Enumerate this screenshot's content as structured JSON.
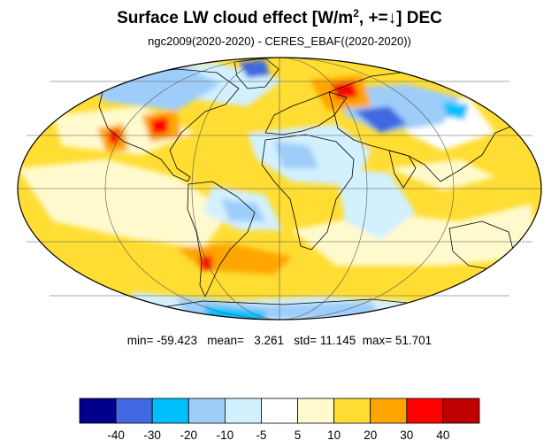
{
  "title": {
    "main": "Surface LW cloud effect [W/m",
    "sup": "2",
    "rest": ", +=↓]  DEC"
  },
  "subtitle": "ngc2009(2020-2020) - CERES_EBAF((2020-2020))",
  "stats": {
    "min_label": "min=",
    "min": "-59.423",
    "mean_label": "mean=",
    "mean": "3.261",
    "std_label": "std=",
    "std": "11.145",
    "max_label": "max=",
    "max": "51.701"
  },
  "colorbar": {
    "colors": [
      "#00008b",
      "#4169e1",
      "#00bfff",
      "#9ecdfa",
      "#d2f0ff",
      "#ffffff",
      "#fffacd",
      "#ffdd33",
      "#ffa500",
      "#ff0000",
      "#bf0000"
    ],
    "labels": [
      "-40",
      "-30",
      "-20",
      "-10",
      "-5",
      "5",
      "10",
      "20",
      "30",
      "40"
    ]
  },
  "map": {
    "projection": "mollweide",
    "background_color": "#ffdd33",
    "meridians_deg": [
      -120,
      -60,
      0,
      60,
      120
    ],
    "parallels_deg": [
      -60,
      -30,
      0,
      30,
      60
    ]
  }
}
